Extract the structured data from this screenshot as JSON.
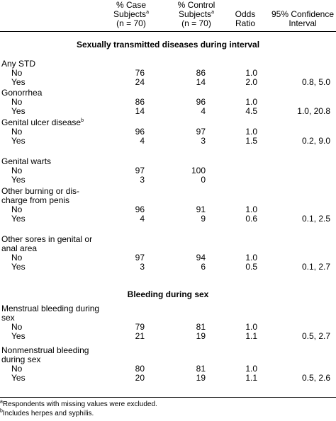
{
  "headers": {
    "case_line1": "% Case",
    "case_line2": "Subjects",
    "case_mark": "a",
    "case_n": "(n = 70)",
    "control_line1": "% Control",
    "control_line2": "Subjects",
    "control_mark": "a",
    "control_n": "(n = 70)",
    "odds_line1": "Odds",
    "odds_line2": "Ratio",
    "ci_line1": "95% Confidence",
    "ci_line2": "Interval"
  },
  "sections": [
    {
      "title": "Sexually transmitted diseases during interval",
      "groups": [
        {
          "label": "Any STD",
          "mark": "",
          "rows": [
            {
              "label": "No",
              "case": "76",
              "control": "86",
              "odds": "1.0",
              "ci": ""
            },
            {
              "label": "Yes",
              "case": "24",
              "control": "14",
              "odds": "2.0",
              "ci": "0.8, 5.0"
            }
          ]
        },
        {
          "label": "Gonorrhea",
          "mark": "",
          "rows": [
            {
              "label": "No",
              "case": "86",
              "control": "96",
              "odds": "1.0",
              "ci": ""
            },
            {
              "label": "Yes",
              "case": "14",
              "control": "4",
              "odds": "4.5",
              "ci": "1.0, 20.8"
            }
          ]
        },
        {
          "label": "Genital ulcer disease",
          "mark": "b",
          "rows": [
            {
              "label": "No",
              "case": "96",
              "control": "97",
              "odds": "1.0",
              "ci": ""
            },
            {
              "label": "Yes",
              "case": "4",
              "control": "3",
              "odds": "1.5",
              "ci": "0.2, 9.0"
            }
          ]
        },
        {
          "label": "Genital warts",
          "mark": "",
          "rows": [
            {
              "label": "No",
              "case": "97",
              "control": "100",
              "odds": "",
              "ci": ""
            },
            {
              "label": "Yes",
              "case": "3",
              "control": "0",
              "odds": "",
              "ci": ""
            }
          ]
        },
        {
          "label": "Other burning or dis-|charge from penis",
          "mark": "",
          "rows": [
            {
              "label": "No",
              "case": "96",
              "control": "91",
              "odds": "1.0",
              "ci": ""
            },
            {
              "label": "Yes",
              "case": "4",
              "control": "9",
              "odds": "0.6",
              "ci": "0.1, 2.5"
            }
          ]
        },
        {
          "label": "Other sores in genital or|anal area",
          "mark": "",
          "rows": [
            {
              "label": "No",
              "case": "97",
              "control": "94",
              "odds": "1.0",
              "ci": ""
            },
            {
              "label": "Yes",
              "case": "3",
              "control": "6",
              "odds": "0.5",
              "ci": "0.1, 2.7"
            }
          ]
        }
      ]
    },
    {
      "title": "Bleeding during sex",
      "groups": [
        {
          "label": "Menstrual bleeding during|sex",
          "mark": "",
          "rows": [
            {
              "label": "No",
              "case": "79",
              "control": "81",
              "odds": "1.0",
              "ci": ""
            },
            {
              "label": "Yes",
              "case": "21",
              "control": "19",
              "odds": "1.1",
              "ci": "0.5, 2.7"
            }
          ]
        },
        {
          "label": "Nonmenstrual bleeding|during sex",
          "mark": "",
          "rows": [
            {
              "label": "No",
              "case": "80",
              "control": "81",
              "odds": "1.0",
              "ci": ""
            },
            {
              "label": "Yes",
              "case": "20",
              "control": "19",
              "odds": "1.1",
              "ci": "0.5, 2.6"
            }
          ]
        }
      ]
    }
  ],
  "footnotes": [
    {
      "mark": "a",
      "text": "Respondents with missing values were excluded."
    },
    {
      "mark": "b",
      "text": "Includes herpes and syphilis."
    }
  ]
}
